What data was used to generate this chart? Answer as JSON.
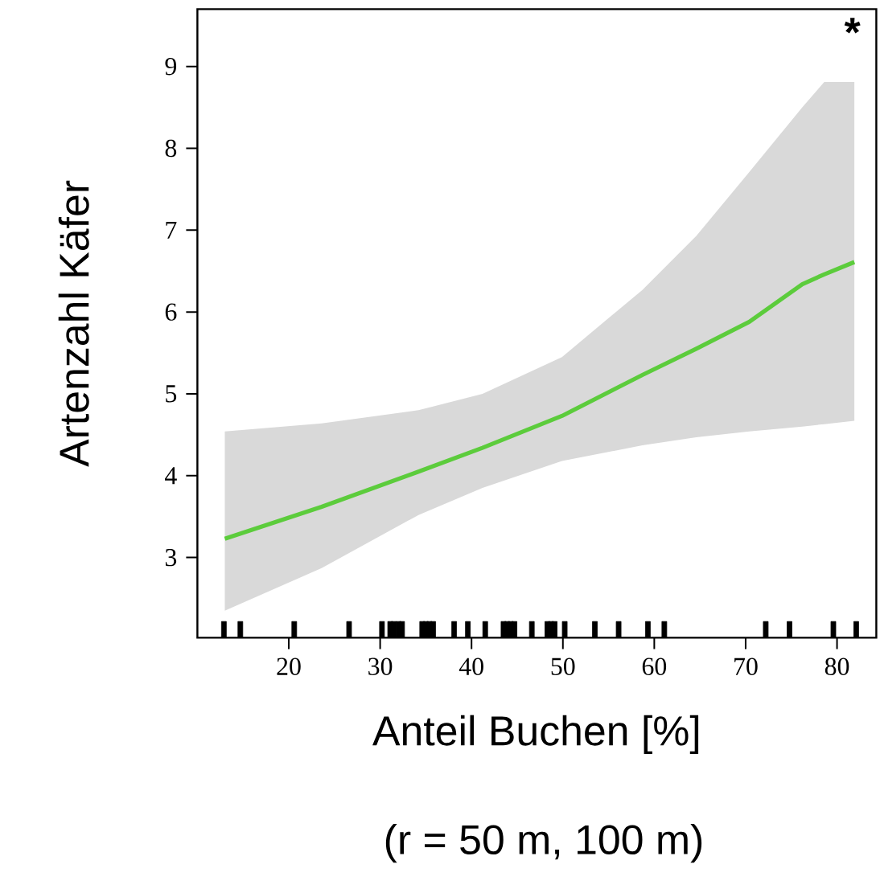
{
  "chart_data": {
    "type": "line",
    "xlabel": "Anteil Buchen [%]",
    "ylabel": "Artenzahl Käfer",
    "annotations": [
      "*",
      "(r = 50 m, 100 m)"
    ],
    "xlim": [
      10,
      84.3
    ],
    "ylim": [
      2.02,
      9.7
    ],
    "xticks": [
      20,
      30,
      40,
      50,
      60,
      70,
      80
    ],
    "yticks": [
      3,
      4,
      5,
      6,
      7,
      8,
      9
    ],
    "series": [
      {
        "color": "#5ccc3c",
        "marker": "none",
        "line_style": "solid",
        "x": [
          13.0,
          23.6,
          34.2,
          41.2,
          49.9,
          58.7,
          64.6,
          70.4,
          76.2,
          78.6,
          81.9
        ],
        "values": [
          3.23,
          3.62,
          4.05,
          4.34,
          4.73,
          5.23,
          5.55,
          5.88,
          6.34,
          6.46,
          6.61
        ],
        "lower": [
          2.35,
          2.87,
          3.52,
          3.85,
          4.18,
          4.37,
          4.47,
          4.54,
          4.6,
          4.63,
          4.67
        ],
        "upper": [
          4.54,
          4.64,
          4.8,
          5.0,
          5.45,
          6.27,
          6.93,
          7.71,
          8.5,
          8.81,
          8.81
        ]
      },
      {
        "type": "scatter",
        "color": "#000000",
        "x": [
          12.9,
          14.7,
          20.6,
          26.6,
          30.2,
          31.1,
          31.5,
          32.0,
          32.4,
          34.6,
          35.0,
          35.4,
          35.8,
          38.1,
          39.6,
          41.5,
          43.5,
          43.9,
          44.3,
          44.7,
          46.6,
          48.3,
          48.7,
          49.1,
          50.2,
          53.5,
          56.1,
          59.3,
          61.1,
          72.2,
          74.8,
          79.6,
          82.1
        ],
        "values": [
          2.12,
          2.12,
          2.12,
          2.12,
          2.12,
          2.12,
          2.12,
          2.12,
          2.12,
          2.12,
          2.12,
          2.12,
          2.12,
          2.12,
          2.12,
          2.12,
          2.12,
          2.12,
          2.12,
          2.12,
          2.12,
          2.12,
          2.12,
          2.12,
          2.12,
          2.12,
          2.12,
          2.12,
          2.12,
          2.12,
          2.12,
          2.12,
          2.12
        ]
      }
    ]
  }
}
